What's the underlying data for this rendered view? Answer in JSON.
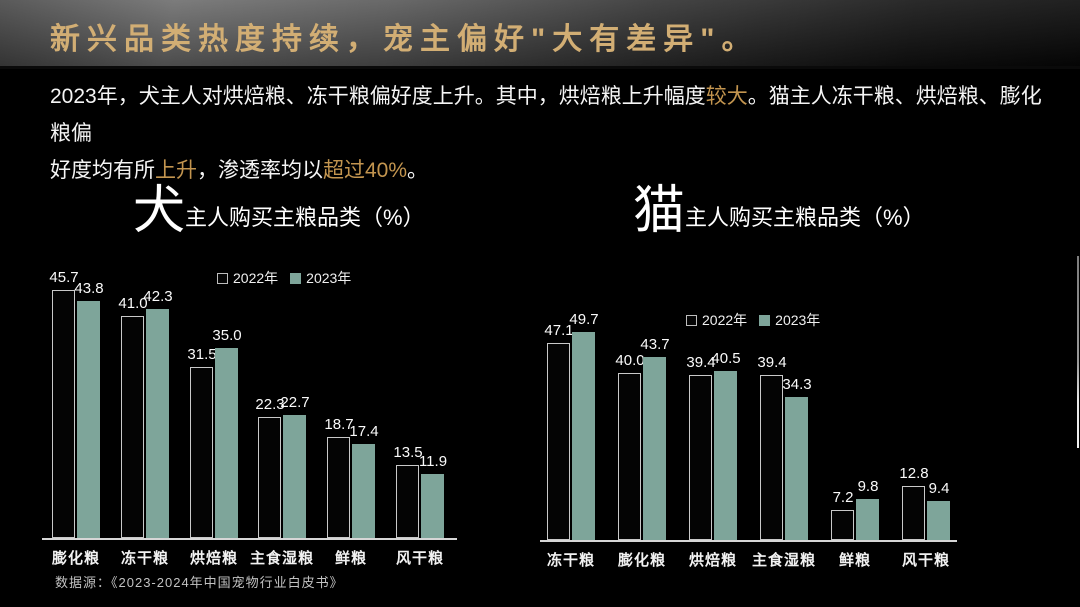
{
  "slide": {
    "title": "新兴品类热度持续，宠主偏好\"大有差异\"。",
    "source_note": "数据源：《2023-2024年中国宠物行业白皮书》"
  },
  "intro": {
    "line1": [
      {
        "t": "2023年，犬主人对烘焙粮、冻干粮偏好度上升。其中，烘焙粮上升幅度"
      },
      {
        "t": "较大",
        "highlight": true
      },
      {
        "t": "。猫主人冻干粮、烘焙粮、膨化粮偏"
      }
    ],
    "line2": [
      {
        "t": "好度均有所"
      },
      {
        "t": "上升",
        "highlight": true
      },
      {
        "t": "，渗透率均以"
      },
      {
        "t": "超过40%",
        "highlight": true
      },
      {
        "t": "。"
      }
    ]
  },
  "colors": {
    "background": "#000000",
    "title_gold": "#d2ae74",
    "highlight_gold": "#c3954f",
    "bar_2023_teal": "#7ea59a",
    "bar_2022_fill": "#040404",
    "bar_2022_border": "#c9c9c9",
    "axis_line": "#d6d6d6",
    "text_white": "#f5f5f5"
  },
  "chart_data": [
    {
      "type": "bar",
      "title": "犬主人购买主粮品类（%）",
      "title_big": "犬",
      "title_rest": "主人购买主粮品类（%）",
      "unit": "%",
      "legend_position": "top-center",
      "grid": false,
      "ylim": [
        0,
        50
      ],
      "categories": [
        "膨化粮",
        "冻干粮",
        "烘焙粮",
        "主食湿粮",
        "鲜粮",
        "风干粮"
      ],
      "series": [
        {
          "name": "2022年",
          "values": [
            45.7,
            41.0,
            31.5,
            22.3,
            18.7,
            13.5
          ]
        },
        {
          "name": "2023年",
          "values": [
            43.8,
            42.3,
            35.0,
            22.7,
            17.4,
            11.9
          ]
        }
      ]
    },
    {
      "type": "bar",
      "title": "猫主人购买主粮品类（%）",
      "title_big": "猫",
      "title_rest": "主人购买主粮品类（%）",
      "unit": "%",
      "legend_position": "top-center",
      "grid": false,
      "ylim": [
        0,
        55
      ],
      "categories": [
        "冻干粮",
        "膨化粮",
        "烘焙粮",
        "主食湿粮",
        "鲜粮",
        "风干粮"
      ],
      "series": [
        {
          "name": "2022年",
          "values": [
            47.1,
            40.0,
            39.4,
            39.4,
            7.2,
            12.8
          ]
        },
        {
          "name": "2023年",
          "values": [
            49.7,
            43.7,
            40.5,
            34.3,
            9.8,
            9.4
          ]
        }
      ]
    }
  ]
}
